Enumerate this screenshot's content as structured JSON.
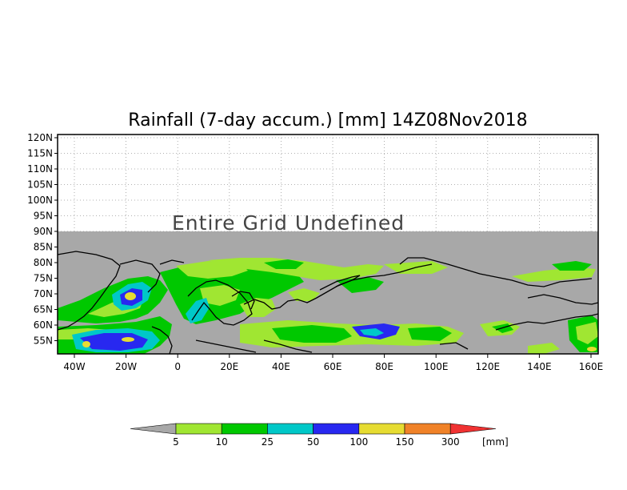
{
  "title": "Rainfall (7-day accum.) [mm] 14Z08Nov2018",
  "undefined_text": "Entire Grid Undefined",
  "lat_labels": [
    "120N",
    "115N",
    "110N",
    "105N",
    "100N",
    "95N",
    "90N",
    "85N",
    "80N",
    "75N",
    "70N",
    "65N",
    "60N",
    "55N"
  ],
  "lon_labels": [
    "40W",
    "20W",
    "0",
    "20E",
    "40E",
    "60E",
    "80E",
    "100E",
    "120E",
    "140E",
    "160E"
  ],
  "colorbar": {
    "labels": [
      "5",
      "10",
      "25",
      "50",
      "100",
      "150",
      "300"
    ],
    "unit": "[mm]",
    "colors": [
      "#a8a8a8",
      "#a0e632",
      "#00c800",
      "#00c8c8",
      "#2828f0",
      "#e6dc32",
      "#f08228",
      "#f03232"
    ]
  },
  "colors": {
    "undefined_fill": "#a8a8a8",
    "grid_line": "#999999"
  }
}
